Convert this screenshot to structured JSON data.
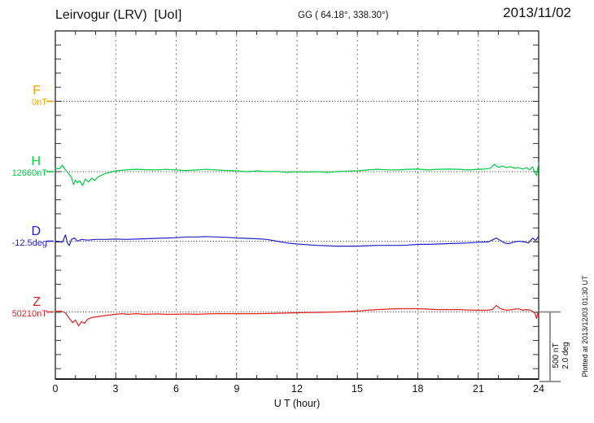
{
  "header": {
    "title": "Leirvogur (LRV)  [UoI]",
    "gg_coords": "GG ( 64.18°, 338.30°)",
    "date": "2013/11/02"
  },
  "channels": [
    {
      "id": "F",
      "label": "F",
      "unit": "0nT",
      "color": "#FFA500"
    },
    {
      "id": "H",
      "label": "H",
      "unit": "12660nT",
      "color": "#00CC44"
    },
    {
      "id": "D",
      "label": "D",
      "unit": "-12.5deg",
      "color": "#2222CC"
    },
    {
      "id": "Z",
      "label": "Z",
      "unit": "50210nT",
      "color": "#E32222"
    }
  ],
  "x_axis": {
    "label": "U T (hour)",
    "ticks": [
      "0",
      "3",
      "6",
      "9",
      "12",
      "15",
      "18",
      "21",
      "24"
    ]
  },
  "scale_bar": {
    "labels": [
      "500 nT",
      "2.0 deg"
    ]
  },
  "footer_note": "Plotted at 2013/12/03 01:30 UT",
  "chart_data": {
    "type": "line",
    "title": "Leirvogur (LRV) magnetogram",
    "xlabel": "U T (hour)",
    "x_range": [
      0,
      24
    ],
    "x_ticks": [
      0,
      3,
      6,
      9,
      12,
      15,
      18,
      21,
      24
    ],
    "grid": "dotted vertical lines every 3 h; dotted horizontal baseline per channel; axis ticks every 100 nT",
    "scale": {
      "bar_nT": 500,
      "bar_deg": 2.0,
      "nT_per_division": 100
    },
    "series": [
      {
        "name": "F",
        "unit": "nT",
        "baseline": 0,
        "color": "#FFA500",
        "points": []
      },
      {
        "name": "H",
        "unit": "nT",
        "baseline": 12660,
        "color": "#00CC44",
        "points": [
          [
            0,
            12683
          ],
          [
            0.2,
            12680
          ],
          [
            0.35,
            12706
          ],
          [
            0.5,
            12672
          ],
          [
            0.65,
            12648
          ],
          [
            0.8,
            12620
          ],
          [
            0.9,
            12568
          ],
          [
            1.0,
            12600
          ],
          [
            1.1,
            12580
          ],
          [
            1.2,
            12595
          ],
          [
            1.35,
            12562
          ],
          [
            1.5,
            12608
          ],
          [
            1.65,
            12585
          ],
          [
            1.8,
            12614
          ],
          [
            1.95,
            12597
          ],
          [
            2.1,
            12620
          ],
          [
            2.3,
            12635
          ],
          [
            2.5,
            12648
          ],
          [
            2.75,
            12655
          ],
          [
            3,
            12666
          ],
          [
            3.5,
            12672
          ],
          [
            4,
            12677
          ],
          [
            4.5,
            12674
          ],
          [
            5,
            12672
          ],
          [
            5.5,
            12676
          ],
          [
            6,
            12672
          ],
          [
            6.5,
            12668
          ],
          [
            7,
            12672
          ],
          [
            7.5,
            12676
          ],
          [
            8,
            12672
          ],
          [
            8.5,
            12668
          ],
          [
            9,
            12666
          ],
          [
            9.5,
            12660
          ],
          [
            10,
            12665
          ],
          [
            10.5,
            12660
          ],
          [
            11,
            12662
          ],
          [
            11.5,
            12655
          ],
          [
            12,
            12660
          ],
          [
            12.5,
            12656
          ],
          [
            13,
            12660
          ],
          [
            13.5,
            12655
          ],
          [
            14,
            12660
          ],
          [
            14.5,
            12664
          ],
          [
            15,
            12666
          ],
          [
            15.5,
            12672
          ],
          [
            16,
            12677
          ],
          [
            16.5,
            12673
          ],
          [
            17,
            12672
          ],
          [
            17.5,
            12677
          ],
          [
            18,
            12678
          ],
          [
            18.5,
            12672
          ],
          [
            19,
            12677
          ],
          [
            19.5,
            12678
          ],
          [
            20,
            12677
          ],
          [
            20.5,
            12672
          ],
          [
            21,
            12677
          ],
          [
            21.3,
            12678
          ],
          [
            21.6,
            12684
          ],
          [
            21.8,
            12712
          ],
          [
            22,
            12690
          ],
          [
            22.2,
            12700
          ],
          [
            22.4,
            12689
          ],
          [
            22.6,
            12695
          ],
          [
            22.8,
            12684
          ],
          [
            23,
            12689
          ],
          [
            23.2,
            12678
          ],
          [
            23.4,
            12689
          ],
          [
            23.55,
            12672
          ],
          [
            23.7,
            12695
          ],
          [
            23.8,
            12655
          ],
          [
            23.9,
            12631
          ],
          [
            24,
            12723
          ]
        ]
      },
      {
        "name": "D",
        "unit": "deg",
        "baseline": -12.5,
        "color": "#2222CC",
        "points": [
          [
            0,
            -12.5
          ],
          [
            0.2,
            -12.51
          ],
          [
            0.35,
            -12.53
          ],
          [
            0.5,
            -12.32
          ],
          [
            0.6,
            -12.55
          ],
          [
            0.7,
            -12.62
          ],
          [
            0.8,
            -12.45
          ],
          [
            0.95,
            -12.41
          ],
          [
            1.1,
            -12.5
          ],
          [
            1.3,
            -12.45
          ],
          [
            1.6,
            -12.47
          ],
          [
            2,
            -12.45
          ],
          [
            2.5,
            -12.45
          ],
          [
            3,
            -12.44
          ],
          [
            3.5,
            -12.45
          ],
          [
            4,
            -12.44
          ],
          [
            4.5,
            -12.43
          ],
          [
            5,
            -12.42
          ],
          [
            5.5,
            -12.41
          ],
          [
            6,
            -12.4
          ],
          [
            6.5,
            -12.38
          ],
          [
            7,
            -12.38
          ],
          [
            7.5,
            -12.37
          ],
          [
            8,
            -12.38
          ],
          [
            8.5,
            -12.39
          ],
          [
            9,
            -12.41
          ],
          [
            9.5,
            -12.42
          ],
          [
            10,
            -12.43
          ],
          [
            10.5,
            -12.45
          ],
          [
            11,
            -12.5
          ],
          [
            11.5,
            -12.55
          ],
          [
            12,
            -12.58
          ],
          [
            12.5,
            -12.6
          ],
          [
            13,
            -12.62
          ],
          [
            13.5,
            -12.63
          ],
          [
            14,
            -12.64
          ],
          [
            14.5,
            -12.64
          ],
          [
            15,
            -12.64
          ],
          [
            15.5,
            -12.63
          ],
          [
            16,
            -12.62
          ],
          [
            16.5,
            -12.62
          ],
          [
            17,
            -12.62
          ],
          [
            17.5,
            -12.61
          ],
          [
            18,
            -12.59
          ],
          [
            18.5,
            -12.59
          ],
          [
            19,
            -12.58
          ],
          [
            19.5,
            -12.57
          ],
          [
            20,
            -12.56
          ],
          [
            20.5,
            -12.55
          ],
          [
            21,
            -12.53
          ],
          [
            21.5,
            -12.52
          ],
          [
            21.9,
            -12.41
          ],
          [
            22.1,
            -12.48
          ],
          [
            22.3,
            -12.55
          ],
          [
            22.5,
            -12.57
          ],
          [
            22.8,
            -12.52
          ],
          [
            23,
            -12.5
          ],
          [
            23.3,
            -12.52
          ],
          [
            23.5,
            -12.55
          ],
          [
            23.7,
            -12.41
          ],
          [
            23.85,
            -12.48
          ],
          [
            24,
            -12.36
          ]
        ]
      },
      {
        "name": "Z",
        "unit": "nT",
        "baseline": 50210,
        "color": "#E32222",
        "points": [
          [
            0,
            50216
          ],
          [
            0.3,
            50216
          ],
          [
            0.5,
            50204
          ],
          [
            0.7,
            50164
          ],
          [
            0.85,
            50135
          ],
          [
            1.0,
            50152
          ],
          [
            1.15,
            50112
          ],
          [
            1.3,
            50141
          ],
          [
            1.45,
            50129
          ],
          [
            1.6,
            50158
          ],
          [
            1.8,
            50170
          ],
          [
            2,
            50175
          ],
          [
            2.3,
            50181
          ],
          [
            2.6,
            50187
          ],
          [
            3,
            50193
          ],
          [
            3.3,
            50198
          ],
          [
            3.6,
            50193
          ],
          [
            4,
            50198
          ],
          [
            4.5,
            50193
          ],
          [
            5,
            50196
          ],
          [
            5.5,
            50193
          ],
          [
            6,
            50193
          ],
          [
            6.5,
            50196
          ],
          [
            7,
            50193
          ],
          [
            7.5,
            50196
          ],
          [
            8,
            50198
          ],
          [
            9,
            50198
          ],
          [
            10,
            50198
          ],
          [
            11,
            50201
          ],
          [
            12,
            50204
          ],
          [
            13,
            50207
          ],
          [
            14,
            50210
          ],
          [
            15,
            50216
          ],
          [
            15.5,
            50222
          ],
          [
            16,
            50227
          ],
          [
            16.5,
            50230
          ],
          [
            17,
            50233
          ],
          [
            17.5,
            50233
          ],
          [
            18,
            50233
          ],
          [
            18.5,
            50230
          ],
          [
            19,
            50227
          ],
          [
            19.5,
            50227
          ],
          [
            20,
            50227
          ],
          [
            20.5,
            50224
          ],
          [
            21,
            50222
          ],
          [
            21.4,
            50222
          ],
          [
            21.7,
            50227
          ],
          [
            21.9,
            50256
          ],
          [
            22.1,
            50233
          ],
          [
            22.4,
            50222
          ],
          [
            22.7,
            50227
          ],
          [
            23,
            50233
          ],
          [
            23.2,
            50222
          ],
          [
            23.4,
            50227
          ],
          [
            23.6,
            50222
          ],
          [
            23.8,
            50204
          ],
          [
            23.9,
            50164
          ],
          [
            24,
            50222
          ]
        ]
      }
    ]
  }
}
